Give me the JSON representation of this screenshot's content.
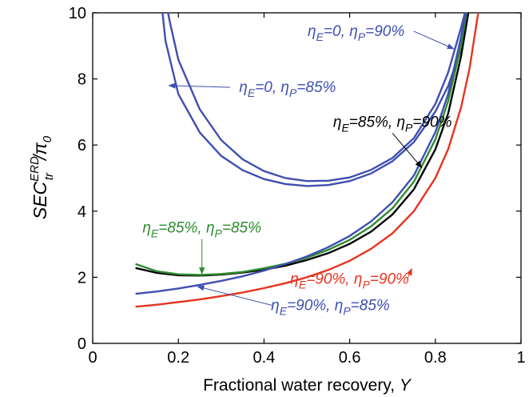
{
  "chart_data": {
    "type": "line",
    "xlabel": "Fractional water recovery, Y",
    "ylabel": "SEC_tr^ERD / π0",
    "xlim": [
      0,
      1
    ],
    "ylim": [
      0,
      10
    ],
    "xticks": [
      "0",
      "0.2",
      "0.4",
      "0.6",
      "0.8",
      "1"
    ],
    "yticks": [
      "0",
      "2",
      "4",
      "6",
      "8",
      "10"
    ],
    "grid": false,
    "series": [
      {
        "color": "#3f4fb0",
        "x": [
          0.163,
          0.17,
          0.2,
          0.25,
          0.3,
          0.35,
          0.4,
          0.45,
          0.5,
          0.55,
          0.6,
          0.65,
          0.7,
          0.75,
          0.8,
          0.83,
          0.86,
          0.874
        ],
        "y": [
          10.0,
          9.15,
          7.54,
          6.38,
          5.67,
          5.24,
          4.97,
          4.82,
          4.76,
          4.79,
          4.91,
          5.14,
          5.51,
          6.09,
          7.01,
          7.79,
          8.91,
          10.0
        ]
      },
      {
        "color": "#3f4fb0",
        "x": [
          0.176,
          0.18,
          0.2,
          0.25,
          0.3,
          0.35,
          0.4,
          0.45,
          0.5,
          0.55,
          0.6,
          0.65,
          0.7,
          0.75,
          0.8,
          0.83,
          0.86,
          0.869
        ],
        "y": [
          10.0,
          9.73,
          8.58,
          7.08,
          6.15,
          5.57,
          5.21,
          5.0,
          4.91,
          4.92,
          5.02,
          5.25,
          5.61,
          6.21,
          7.24,
          8.2,
          9.55,
          10.0
        ]
      },
      {
        "color": "#000000",
        "x": [
          0.1,
          0.15,
          0.2,
          0.25,
          0.3,
          0.35,
          0.4,
          0.45,
          0.5,
          0.55,
          0.6,
          0.65,
          0.7,
          0.75,
          0.8,
          0.83,
          0.86,
          0.877
        ],
        "y": [
          2.28,
          2.13,
          2.06,
          2.05,
          2.08,
          2.14,
          2.23,
          2.35,
          2.52,
          2.73,
          3.01,
          3.38,
          3.9,
          4.66,
          5.87,
          6.96,
          8.69,
          10.0
        ]
      },
      {
        "color": "#2e8b2e",
        "x": [
          0.1,
          0.15,
          0.2,
          0.25,
          0.3,
          0.35,
          0.4,
          0.45,
          0.5,
          0.55,
          0.6,
          0.65,
          0.7,
          0.75,
          0.8,
          0.83,
          0.86,
          0.873
        ],
        "y": [
          2.4,
          2.18,
          2.09,
          2.07,
          2.1,
          2.16,
          2.27,
          2.41,
          2.59,
          2.83,
          3.13,
          3.54,
          4.09,
          4.89,
          6.17,
          7.33,
          9.0,
          10.0
        ]
      },
      {
        "color": "#3f4fb0",
        "x": [
          0.1,
          0.15,
          0.2,
          0.25,
          0.3,
          0.35,
          0.4,
          0.45,
          0.5,
          0.55,
          0.6,
          0.65,
          0.7,
          0.75,
          0.8,
          0.83,
          0.86,
          0.871
        ],
        "y": [
          1.5,
          1.57,
          1.66,
          1.77,
          1.89,
          2.03,
          2.2,
          2.4,
          2.63,
          2.91,
          3.25,
          3.69,
          4.27,
          5.08,
          6.39,
          7.55,
          9.27,
          10.0
        ]
      },
      {
        "color": "#e8331e",
        "x": [
          0.1,
          0.15,
          0.2,
          0.25,
          0.3,
          0.35,
          0.4,
          0.45,
          0.5,
          0.55,
          0.6,
          0.65,
          0.7,
          0.75,
          0.8,
          0.83,
          0.86,
          0.88,
          0.9
        ],
        "y": [
          1.11,
          1.17,
          1.25,
          1.33,
          1.43,
          1.54,
          1.67,
          1.82,
          2.0,
          2.22,
          2.5,
          2.86,
          3.33,
          4.0,
          5.0,
          5.88,
          7.14,
          8.33,
          10.0
        ]
      }
    ],
    "annotations": [
      {
        "text": "ηE=0, ηP=90%",
        "color": "#3f4fb0",
        "ax": 0.615,
        "ay": 9.3,
        "x": 0.843,
        "y": 8.91
      },
      {
        "text": "ηE=0, ηP=85%",
        "color": "#3f4fb0",
        "ax": 0.455,
        "ay": 7.6,
        "x": 0.178,
        "y": 7.8
      },
      {
        "text": "ηE=85%, ηP=90%",
        "color": "#000000",
        "ax": 0.7,
        "ay": 6.55,
        "x": 0.768,
        "y": 5.32
      },
      {
        "text": "ηE=85%, ηP=85%",
        "color": "#2e8b2e",
        "ax": 0.255,
        "ay": 3.35,
        "x": 0.255,
        "y": 2.1
      },
      {
        "text": "ηE=90%, ηP=90%",
        "color": "#e8331e",
        "ax": 0.6,
        "ay": 1.8,
        "x": 0.745,
        "y": 2.26
      },
      {
        "text": "ηE=90%, ηP=85%",
        "color": "#3f4fb0",
        "ax": 0.555,
        "ay": 1.0,
        "x": 0.245,
        "y": 1.72
      }
    ]
  }
}
